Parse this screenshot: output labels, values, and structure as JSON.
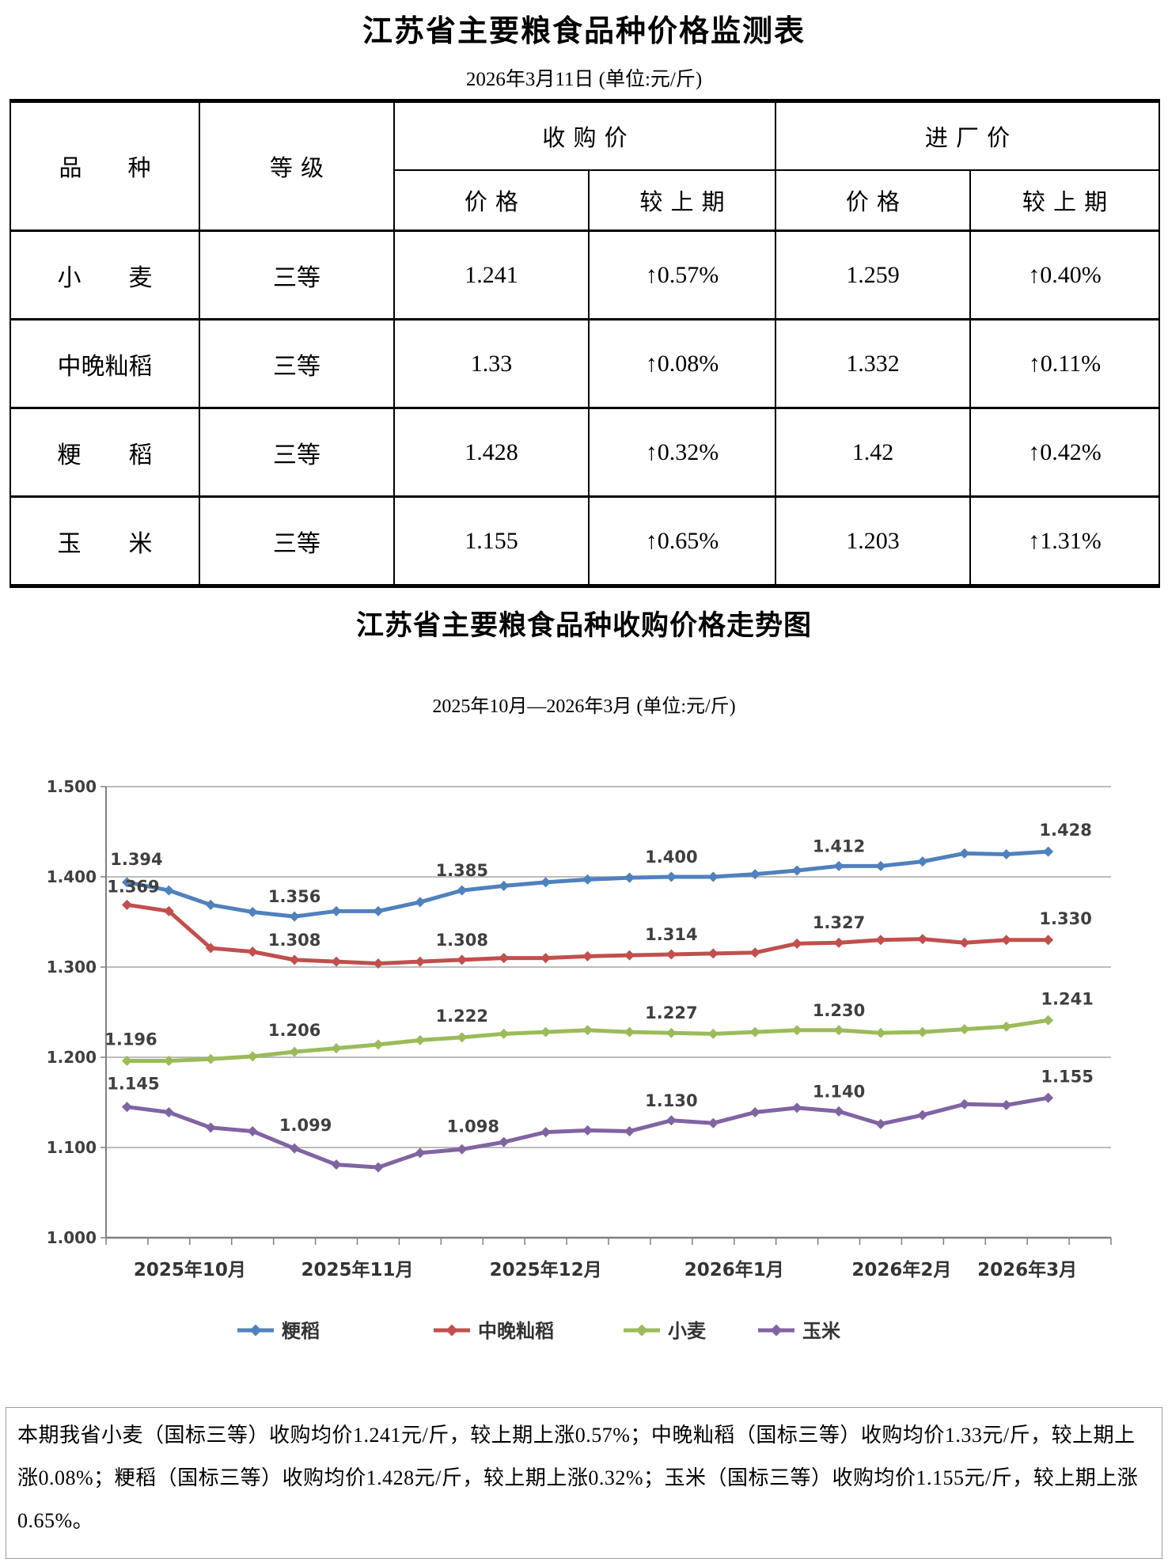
{
  "table_section": {
    "title": "江苏省主要粮食品种价格监测表",
    "date_line": "2026年3月11日 (单位:元/斤)",
    "headers": {
      "variety": "品　　种",
      "grade": "等级",
      "purchase_group": "收购价",
      "factory_group": "进厂价",
      "price": "价格",
      "vs_prev": "较上期"
    },
    "rows": [
      {
        "variety": "小　　麦",
        "grade": "三等",
        "purchase_price": "1.241",
        "purchase_change": "↑0.57%",
        "factory_price": "1.259",
        "factory_change": "↑0.40%"
      },
      {
        "variety": "中晚籼稻",
        "grade": "三等",
        "purchase_price": "1.33",
        "purchase_change": "↑0.08%",
        "factory_price": "1.332",
        "factory_change": "↑0.11%"
      },
      {
        "variety": "粳　　稻",
        "grade": "三等",
        "purchase_price": "1.428",
        "purchase_change": "↑0.32%",
        "factory_price": "1.42",
        "factory_change": "↑0.42%"
      },
      {
        "variety": "玉　　米",
        "grade": "三等",
        "purchase_price": "1.155",
        "purchase_change": "↑0.65%",
        "factory_price": "1.203",
        "factory_change": "↑1.31%"
      }
    ]
  },
  "chart_section": {
    "title": "江苏省主要粮食品种收购价格走势图",
    "subtitle": "2025年10月—2026年3月 (单位:元/斤)"
  },
  "chart_data": {
    "type": "line",
    "title": "江苏省主要粮食品种收购价格走势图",
    "subtitle": "2025年10月—2026年3月 (单位:元/斤)",
    "unit": "元/斤",
    "ylim": [
      1.0,
      1.5
    ],
    "ytick_labels": [
      "1.500",
      "1.400",
      "1.300",
      "1.200",
      "1.100",
      "1.000"
    ],
    "grid": true,
    "legend_position": "bottom",
    "months": [
      {
        "label": "2025年10月",
        "point_range": [
          0,
          3
        ]
      },
      {
        "label": "2025年11月",
        "point_range": [
          4,
          7
        ]
      },
      {
        "label": "2025年12月",
        "point_range": [
          8,
          12
        ]
      },
      {
        "label": "2026年1月",
        "point_range": [
          13,
          16
        ]
      },
      {
        "label": "2026年2月",
        "point_range": [
          17,
          20
        ]
      },
      {
        "label": "2026年3月",
        "point_range": [
          21,
          22
        ]
      }
    ],
    "series": [
      {
        "name": "粳稻",
        "color": "#4F81BD",
        "values": [
          1.394,
          1.385,
          1.369,
          1.361,
          1.356,
          1.362,
          1.362,
          1.372,
          1.385,
          1.39,
          1.394,
          1.397,
          1.399,
          1.4,
          1.4,
          1.403,
          1.407,
          1.412,
          1.412,
          1.417,
          1.426,
          1.425,
          1.428
        ],
        "labels": [
          {
            "i": 0,
            "text": "1.394",
            "dx": 12,
            "dy": -22
          },
          {
            "i": 4,
            "text": "1.356",
            "dx": 0,
            "dy": -18
          },
          {
            "i": 8,
            "text": "1.385",
            "dx": 0,
            "dy": -18
          },
          {
            "i": 13,
            "text": "1.400",
            "dx": 0,
            "dy": -18
          },
          {
            "i": 17,
            "text": "1.412",
            "dx": 0,
            "dy": -18
          },
          {
            "i": 22,
            "text": "1.428",
            "dx": 22,
            "dy": -20
          }
        ]
      },
      {
        "name": "中晚籼稻",
        "color": "#C0504D",
        "values": [
          1.369,
          1.362,
          1.321,
          1.317,
          1.308,
          1.306,
          1.304,
          1.306,
          1.308,
          1.31,
          1.31,
          1.312,
          1.313,
          1.314,
          1.315,
          1.316,
          1.326,
          1.327,
          1.33,
          1.331,
          1.327,
          1.33,
          1.33
        ],
        "labels": [
          {
            "i": 0,
            "text": "1.369",
            "dx": 8,
            "dy": -16
          },
          {
            "i": 4,
            "text": "1.308",
            "dx": 0,
            "dy": -18
          },
          {
            "i": 8,
            "text": "1.308",
            "dx": 0,
            "dy": -18
          },
          {
            "i": 13,
            "text": "1.314",
            "dx": 0,
            "dy": -18
          },
          {
            "i": 17,
            "text": "1.327",
            "dx": 0,
            "dy": -18
          },
          {
            "i": 22,
            "text": "1.330",
            "dx": 22,
            "dy": -20
          }
        ]
      },
      {
        "name": "小麦",
        "color": "#9BBB59",
        "values": [
          1.196,
          1.196,
          1.198,
          1.201,
          1.206,
          1.21,
          1.214,
          1.219,
          1.222,
          1.226,
          1.228,
          1.23,
          1.228,
          1.227,
          1.226,
          1.228,
          1.23,
          1.23,
          1.227,
          1.228,
          1.231,
          1.234,
          1.241
        ],
        "labels": [
          {
            "i": 0,
            "text": "1.196",
            "dx": 5,
            "dy": -20
          },
          {
            "i": 4,
            "text": "1.206",
            "dx": 0,
            "dy": -20
          },
          {
            "i": 8,
            "text": "1.222",
            "dx": 0,
            "dy": -20
          },
          {
            "i": 13,
            "text": "1.227",
            "dx": 0,
            "dy": -18
          },
          {
            "i": 17,
            "text": "1.230",
            "dx": 0,
            "dy": -18
          },
          {
            "i": 22,
            "text": "1.241",
            "dx": 24,
            "dy": -20
          }
        ]
      },
      {
        "name": "玉米",
        "color": "#8064A2",
        "values": [
          1.145,
          1.139,
          1.122,
          1.118,
          1.099,
          1.081,
          1.078,
          1.094,
          1.098,
          1.106,
          1.117,
          1.119,
          1.118,
          1.13,
          1.127,
          1.139,
          1.144,
          1.14,
          1.126,
          1.136,
          1.148,
          1.147,
          1.155
        ],
        "labels": [
          {
            "i": 0,
            "text": "1.145",
            "dx": 8,
            "dy": -22
          },
          {
            "i": 4,
            "text": "1.099",
            "dx": 14,
            "dy": -22
          },
          {
            "i": 8,
            "text": "1.098",
            "dx": 14,
            "dy": -22
          },
          {
            "i": 13,
            "text": "1.130",
            "dx": 0,
            "dy": -18
          },
          {
            "i": 17,
            "text": "1.140",
            "dx": 0,
            "dy": -18
          },
          {
            "i": 22,
            "text": "1.155",
            "dx": 24,
            "dy": -20
          }
        ]
      }
    ]
  },
  "footer": {
    "text": "本期我省小麦（国标三等）收购均价1.241元/斤，较上期上涨0.57%；中晚籼稻（国标三等）收购均价1.33元/斤，较上期上涨0.08%；粳稻（国标三等）收购均价1.428元/斤，较上期上涨0.32%；玉米（国标三等）收购均价1.155元/斤，较上期上涨0.65%。"
  },
  "colors": {
    "jingdao_blue": "#4F81BD",
    "xiandao_red": "#C0504D",
    "xiaomai_green": "#9BBB59",
    "yumi_purple": "#8064A2",
    "gridline_gray": "#A6A6A6",
    "axis_gray": "#808080",
    "label_gray": "#3F3F3F"
  }
}
